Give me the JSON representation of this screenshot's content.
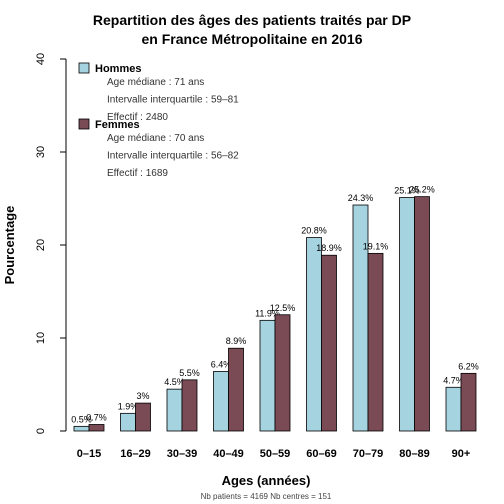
{
  "chart_data": {
    "type": "bar",
    "title_line1": "Repartition des âges des patients traités par DP",
    "title_line2": "en France Métropolitaine en 2016",
    "xlabel": "Ages (années)",
    "ylabel": "Pourcentage",
    "ylim": [
      0,
      40
    ],
    "yticks": [
      "0",
      "10",
      "20",
      "30",
      "40"
    ],
    "categories": [
      "0–15",
      "16–29",
      "30–39",
      "40–49",
      "50–59",
      "60–69",
      "70–79",
      "80–89",
      "90+"
    ],
    "series": [
      {
        "name": "Hommes",
        "color": "#a6d3e0",
        "values": [
          0.5,
          1.9,
          4.5,
          6.4,
          11.9,
          20.8,
          24.3,
          25.1,
          4.7
        ],
        "labels": [
          "0.5%",
          "1.9%",
          "4.5%",
          "6.4%",
          "11.9%",
          "20.8%",
          "24.3%",
          "25.1%",
          "4.7%"
        ],
        "stats": [
          "Age médiane : 71 ans",
          "Intervalle interquartile : 59–81",
          "Effectif :  2480"
        ]
      },
      {
        "name": "Femmes",
        "color": "#7a4a55",
        "values": [
          0.7,
          3.0,
          5.5,
          8.9,
          12.5,
          18.9,
          19.1,
          25.2,
          6.2
        ],
        "labels": [
          "0.7%",
          "3%",
          "5.5%",
          "8.9%",
          "12.5%",
          "18.9%",
          "19.1%",
          "25.2%",
          "6.2%"
        ],
        "stats": [
          "Age médiane : 70 ans",
          "Intervalle interquartile : 56–82",
          "Effectif :  1689"
        ]
      }
    ],
    "legend_position": "top-left",
    "grid": false,
    "footnote": "Nb patients = 4169     Nb centres = 151"
  }
}
